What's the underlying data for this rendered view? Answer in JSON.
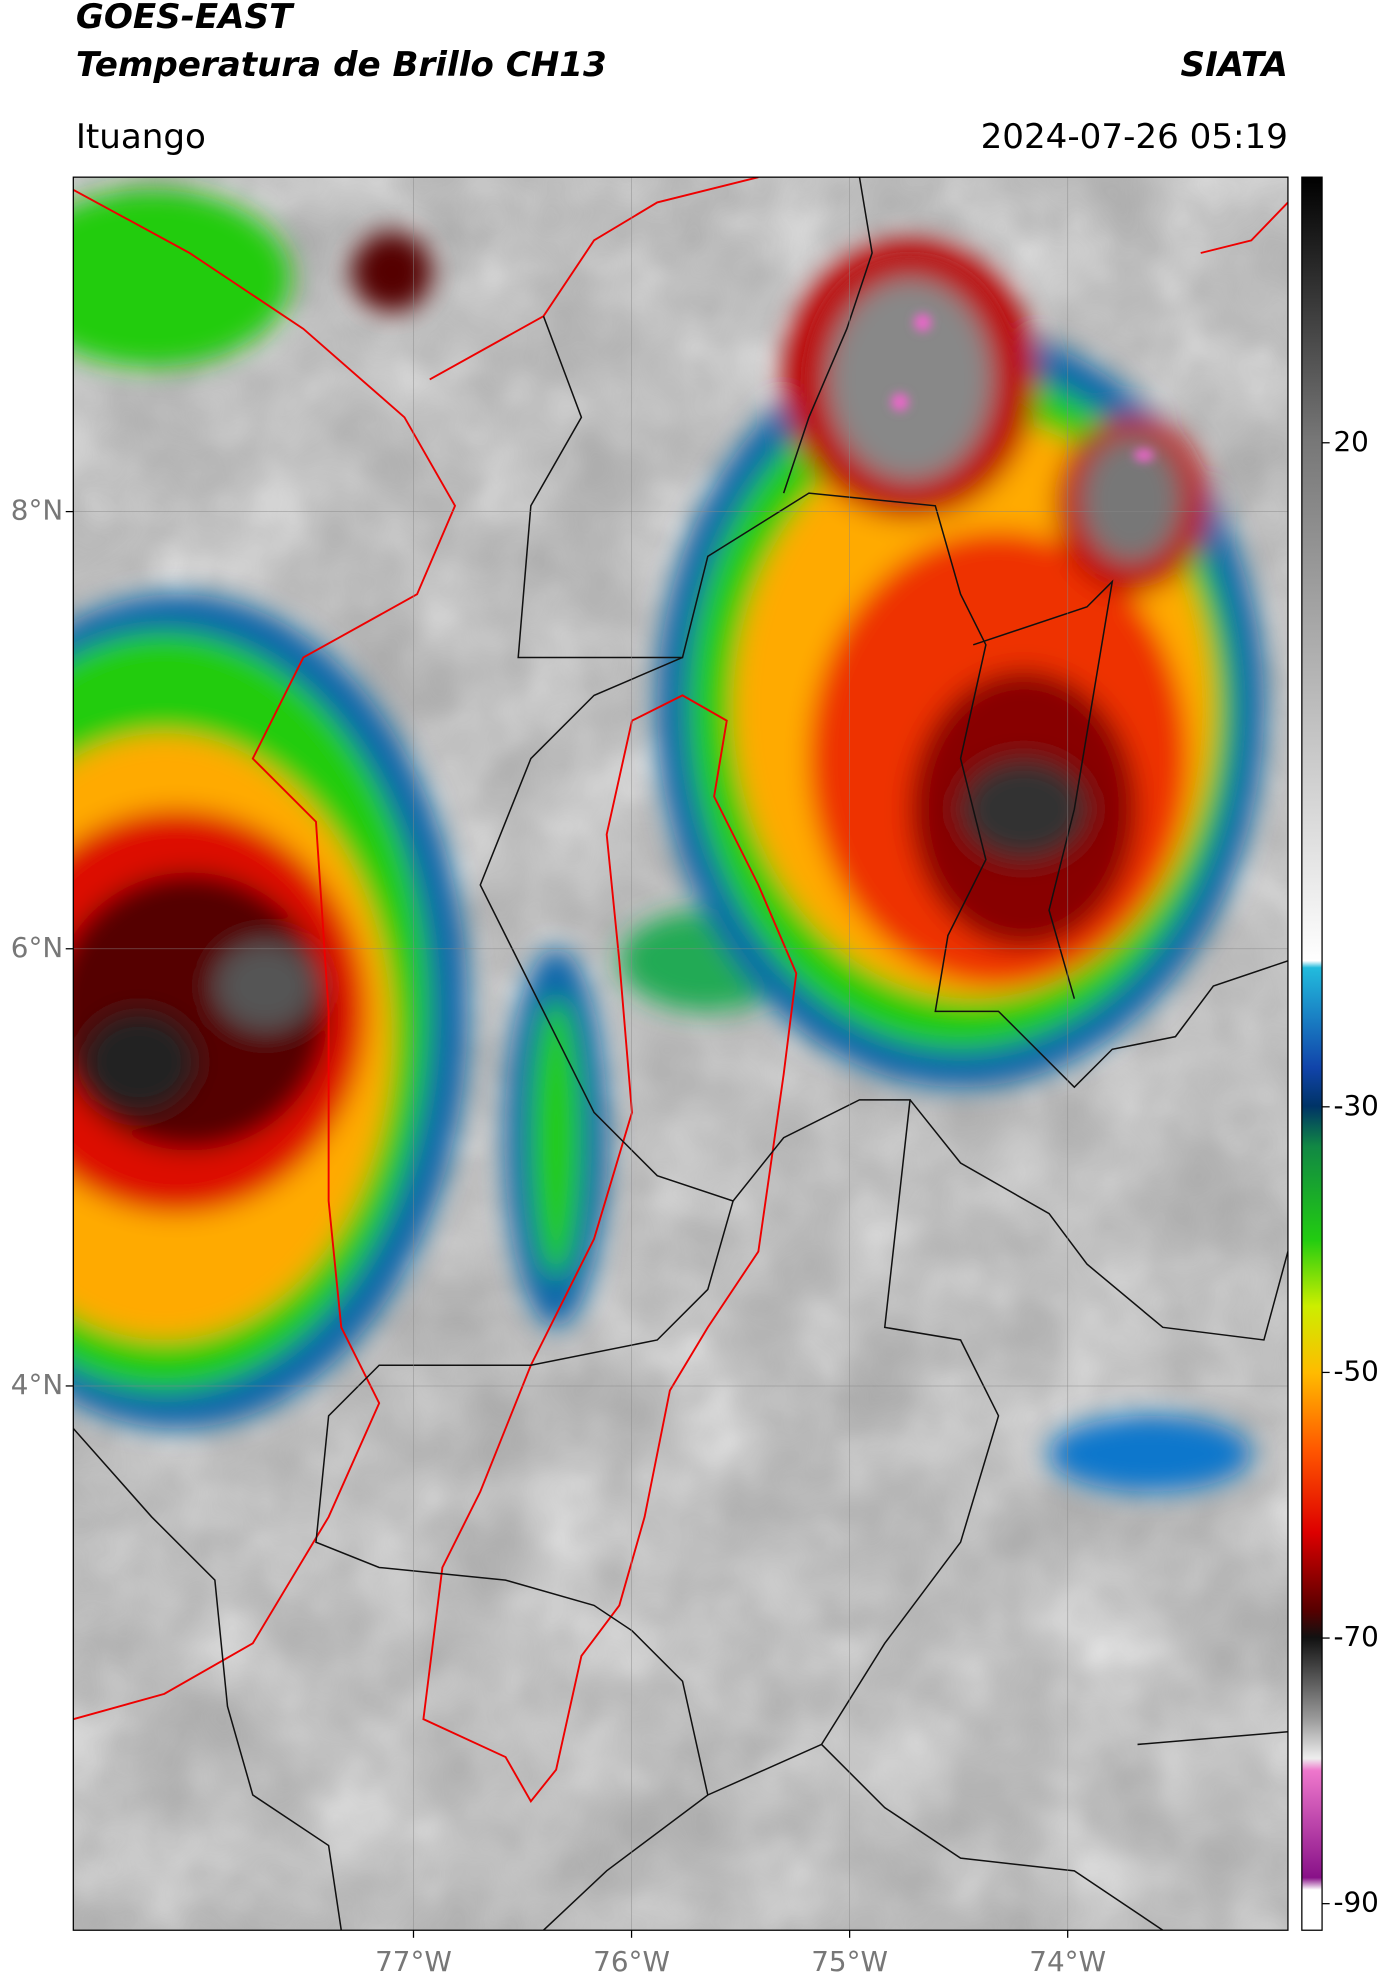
{
  "header": {
    "title": "GOES-EAST",
    "subtitle": "Temperatura de Brillo CH13",
    "org": "SIATA",
    "location": "Ituango",
    "datetime": "2024-07-26 05:19"
  },
  "map": {
    "xlim": [
      -78.56,
      -72.99
    ],
    "ylim": [
      1.51,
      9.53
    ],
    "xticks": [
      {
        "value": -77,
        "label": "77°W"
      },
      {
        "value": -76,
        "label": "76°W"
      },
      {
        "value": -75,
        "label": "75°W"
      },
      {
        "value": -74,
        "label": "74°W"
      }
    ],
    "yticks": [
      {
        "value": 8,
        "label": "8°N"
      },
      {
        "value": 6,
        "label": "6°N"
      },
      {
        "value": 4,
        "label": "4°N"
      }
    ],
    "grid": true
  },
  "colorbar": {
    "lim": [
      -92,
      40
    ],
    "ticks": [
      20,
      -30,
      -50,
      -70,
      -90
    ]
  }
}
